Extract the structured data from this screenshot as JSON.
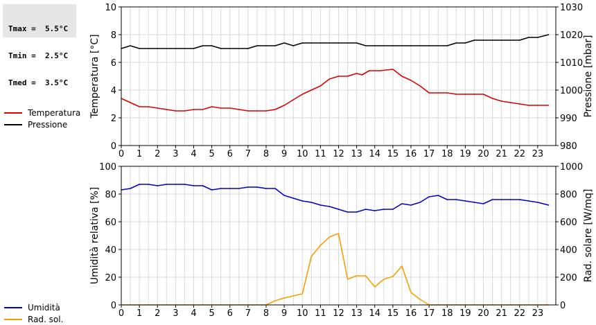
{
  "summary": {
    "tmax": "Tmax =  5.5°C",
    "tmin": "Tmin =  2.5°C",
    "tmed": "Tmed =  3.5°C"
  },
  "chart_data": [
    {
      "type": "line",
      "xlabel": "",
      "xlim": [
        0,
        24
      ],
      "x_ticks": [
        "0",
        "1",
        "2",
        "3",
        "4",
        "5",
        "6",
        "7",
        "8",
        "9",
        "10",
        "11",
        "12",
        "13",
        "14",
        "15",
        "16",
        "17",
        "18",
        "19",
        "20",
        "21",
        "22",
        "23"
      ],
      "ylabel_left": "Temperatura [°C]",
      "ylim_left": [
        0,
        10
      ],
      "yticks_left": [
        "0",
        "2",
        "4",
        "6",
        "8",
        "10"
      ],
      "ylabel_right": "Pressione [mbar]",
      "ylim_right": [
        980,
        1030
      ],
      "yticks_right": [
        "980",
        "990",
        "1000",
        "1010",
        "1020",
        "1030"
      ],
      "grid": true,
      "legend_placement": "left",
      "series": [
        {
          "name": "Temperatura",
          "axis": "left",
          "color": "#dd0000",
          "points": [
            [
              0,
              3.4
            ],
            [
              0.5,
              3.1
            ],
            [
              1,
              2.8
            ],
            [
              1.5,
              2.8
            ],
            [
              2,
              2.7
            ],
            [
              2.5,
              2.6
            ],
            [
              3,
              2.5
            ],
            [
              3.5,
              2.5
            ],
            [
              4,
              2.6
            ],
            [
              4.5,
              2.6
            ],
            [
              5,
              2.8
            ],
            [
              5.5,
              2.7
            ],
            [
              6,
              2.7
            ],
            [
              6.5,
              2.6
            ],
            [
              7,
              2.5
            ],
            [
              7.5,
              2.5
            ],
            [
              8,
              2.5
            ],
            [
              8.5,
              2.6
            ],
            [
              9,
              2.9
            ],
            [
              9.5,
              3.3
            ],
            [
              10,
              3.7
            ],
            [
              10.5,
              4.0
            ],
            [
              11,
              4.3
            ],
            [
              11.5,
              4.8
            ],
            [
              12,
              5.0
            ],
            [
              12.5,
              5.0
            ],
            [
              13,
              5.2
            ],
            [
              13.3,
              5.1
            ],
            [
              13.7,
              5.4
            ],
            [
              14.3,
              5.4
            ],
            [
              15,
              5.5
            ],
            [
              15.5,
              5.0
            ],
            [
              16,
              4.7
            ],
            [
              16.5,
              4.3
            ],
            [
              17,
              3.8
            ],
            [
              17.5,
              3.8
            ],
            [
              18,
              3.8
            ],
            [
              18.5,
              3.7
            ],
            [
              19,
              3.7
            ],
            [
              19.5,
              3.7
            ],
            [
              20,
              3.7
            ],
            [
              20.5,
              3.4
            ],
            [
              21,
              3.2
            ],
            [
              21.5,
              3.1
            ],
            [
              22,
              3.0
            ],
            [
              22.5,
              2.9
            ],
            [
              23,
              2.9
            ],
            [
              23.6,
              2.9
            ]
          ]
        },
        {
          "name": "Pressione",
          "axis": "right",
          "color": "#000000",
          "points": [
            [
              0,
              1015
            ],
            [
              0.5,
              1016
            ],
            [
              1,
              1015
            ],
            [
              2,
              1015
            ],
            [
              3,
              1015
            ],
            [
              4,
              1015
            ],
            [
              4.5,
              1016
            ],
            [
              5,
              1016
            ],
            [
              5.5,
              1015
            ],
            [
              6,
              1015
            ],
            [
              7,
              1015
            ],
            [
              7.5,
              1016
            ],
            [
              8,
              1016
            ],
            [
              8.5,
              1016
            ],
            [
              9,
              1017
            ],
            [
              9.5,
              1016
            ],
            [
              10,
              1017
            ],
            [
              11,
              1017
            ],
            [
              12,
              1017
            ],
            [
              13,
              1017
            ],
            [
              13.5,
              1016
            ],
            [
              14,
              1016
            ],
            [
              15,
              1016
            ],
            [
              16,
              1016
            ],
            [
              17,
              1016
            ],
            [
              18,
              1016
            ],
            [
              18.5,
              1017
            ],
            [
              19,
              1017
            ],
            [
              19.5,
              1018
            ],
            [
              20,
              1018
            ],
            [
              21,
              1018
            ],
            [
              22,
              1018
            ],
            [
              22.5,
              1019
            ],
            [
              23,
              1019
            ],
            [
              23.6,
              1020
            ]
          ]
        }
      ]
    },
    {
      "type": "line",
      "xlabel": "",
      "xlim": [
        0,
        24
      ],
      "x_ticks": [
        "0",
        "1",
        "2",
        "3",
        "4",
        "5",
        "6",
        "7",
        "8",
        "9",
        "10",
        "11",
        "12",
        "13",
        "14",
        "15",
        "16",
        "17",
        "18",
        "19",
        "20",
        "21",
        "22",
        "23"
      ],
      "ylabel_left": "Umidità relativa [%]",
      "ylim_left": [
        0,
        100
      ],
      "yticks_left": [
        "0",
        "20",
        "40",
        "60",
        "80",
        "100"
      ],
      "ylabel_right": "Rad. solare [W/mq]",
      "ylim_right": [
        0,
        1000
      ],
      "yticks_right": [
        "0",
        "200",
        "400",
        "600",
        "800",
        "1000"
      ],
      "grid": true,
      "legend_placement": "left",
      "series": [
        {
          "name": "Umidità",
          "axis": "left",
          "color": "#0000cc",
          "points": [
            [
              0,
              83
            ],
            [
              0.5,
              84
            ],
            [
              1,
              87
            ],
            [
              1.5,
              87
            ],
            [
              2,
              86
            ],
            [
              2.5,
              87
            ],
            [
              3,
              87
            ],
            [
              3.5,
              87
            ],
            [
              4,
              86
            ],
            [
              4.5,
              86
            ],
            [
              5,
              83
            ],
            [
              5.5,
              84
            ],
            [
              6,
              84
            ],
            [
              6.5,
              84
            ],
            [
              7,
              85
            ],
            [
              7.5,
              85
            ],
            [
              8,
              84
            ],
            [
              8.5,
              84
            ],
            [
              9,
              79
            ],
            [
              9.5,
              77
            ],
            [
              10,
              75
            ],
            [
              10.5,
              74
            ],
            [
              11,
              72
            ],
            [
              11.5,
              71
            ],
            [
              12,
              69
            ],
            [
              12.5,
              67
            ],
            [
              13,
              67
            ],
            [
              13.5,
              69
            ],
            [
              14,
              68
            ],
            [
              14.5,
              69
            ],
            [
              15,
              69
            ],
            [
              15.5,
              73
            ],
            [
              16,
              72
            ],
            [
              16.5,
              74
            ],
            [
              17,
              78
            ],
            [
              17.5,
              79
            ],
            [
              18,
              76
            ],
            [
              18.5,
              76
            ],
            [
              19,
              75
            ],
            [
              19.5,
              74
            ],
            [
              20,
              73
            ],
            [
              20.5,
              76
            ],
            [
              21,
              76
            ],
            [
              21.5,
              76
            ],
            [
              22,
              76
            ],
            [
              22.5,
              75
            ],
            [
              23,
              74
            ],
            [
              23.6,
              72
            ]
          ]
        },
        {
          "name": "Rad. sol.",
          "axis": "right",
          "color": "#f5a000",
          "points": [
            [
              0,
              0
            ],
            [
              1,
              0
            ],
            [
              2,
              0
            ],
            [
              3,
              0
            ],
            [
              4,
              0
            ],
            [
              5,
              0
            ],
            [
              6,
              0
            ],
            [
              7,
              0
            ],
            [
              8,
              0
            ],
            [
              8.5,
              30
            ],
            [
              9,
              50
            ],
            [
              9.5,
              65
            ],
            [
              10,
              80
            ],
            [
              10.5,
              350
            ],
            [
              11,
              430
            ],
            [
              11.5,
              490
            ],
            [
              12,
              515
            ],
            [
              12.5,
              185
            ],
            [
              13,
              210
            ],
            [
              13.5,
              210
            ],
            [
              14,
              130
            ],
            [
              14.5,
              185
            ],
            [
              15,
              205
            ],
            [
              15.5,
              280
            ],
            [
              16,
              90
            ],
            [
              16.5,
              40
            ],
            [
              17,
              0
            ],
            [
              18,
              0
            ],
            [
              19,
              0
            ],
            [
              20,
              0
            ],
            [
              21,
              0
            ],
            [
              22,
              0
            ],
            [
              23,
              0
            ],
            [
              23.6,
              0
            ]
          ]
        }
      ]
    }
  ]
}
